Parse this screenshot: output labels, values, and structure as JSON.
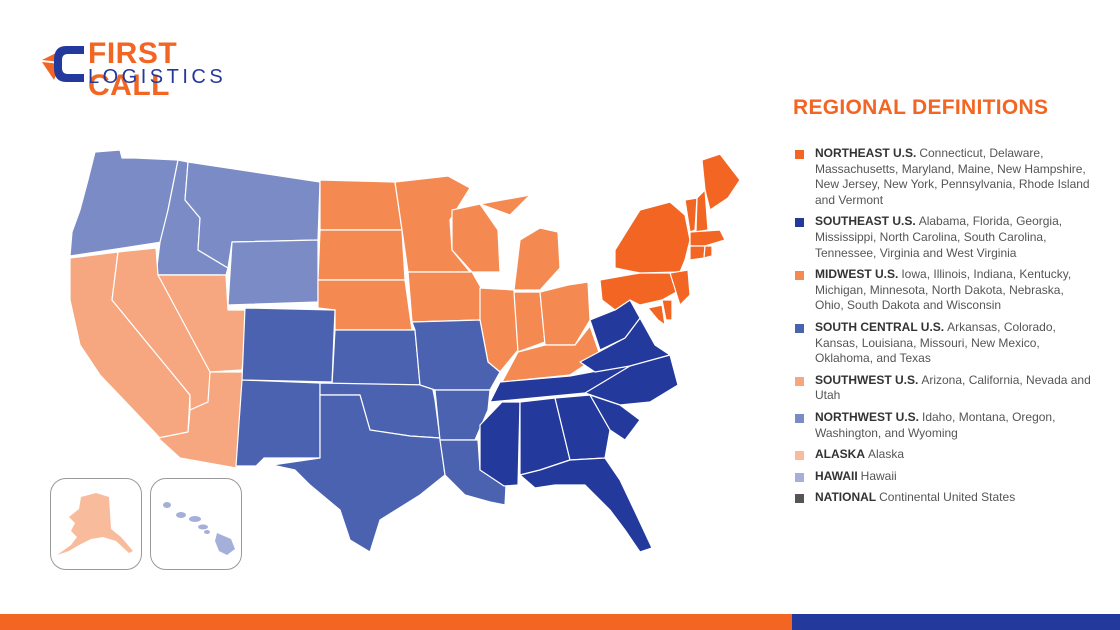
{
  "brand": {
    "line1": "FIRST CALL",
    "line2": "LOGISTICS"
  },
  "colors": {
    "northeast": "#f26522",
    "southeast": "#23399b",
    "midwest": "#f48a52",
    "south_central": "#4a62b0",
    "southwest": "#f6a77f",
    "northwest": "#7b8bc5",
    "alaska": "#f8bc9c",
    "hawaii": "#a5b0da",
    "national": "#555555"
  },
  "legend": {
    "title": "REGIONAL DEFINITIONS",
    "items": [
      {
        "name": "NORTHEAST U.S.",
        "desc": "Connecticut, Delaware, Massachusetts, Maryland, Maine, New Hampshire, New Jersey, New York, Pennsylvania, Rhode Island and Vermont",
        "color": "#f26522"
      },
      {
        "name": "SOUTHEAST U.S.",
        "desc": "Alabama, Florida, Georgia, Mississippi, North Carolina, South Carolina, Tennessee, Virginia and West Virginia",
        "color": "#23399b"
      },
      {
        "name": "MIDWEST U.S.",
        "desc": "Iowa, Illinois, Indiana, Kentucky, Michigan, Minnesota, North Dakota, Nebraska, Ohio, South Dakota and Wisconsin",
        "color": "#f48a52"
      },
      {
        "name": "SOUTH CENTRAL U.S.",
        "desc": "Arkansas, Colorado, Kansas, Louisiana, Missouri, New Mexico, Oklahoma, and Texas",
        "color": "#4a62b0"
      },
      {
        "name": "SOUTHWEST U.S.",
        "desc": "Arizona, California, Nevada and Utah",
        "color": "#f6a77f"
      },
      {
        "name": "NORTHWEST U.S.",
        "desc": "Idaho, Montana, Oregon, Washington, and Wyoming",
        "color": "#7b8bc5"
      },
      {
        "name": "ALASKA",
        "desc": "Alaska",
        "color": "#f8bc9c"
      },
      {
        "name": "HAWAII",
        "desc": "Hawaii",
        "color": "#a5b0da"
      },
      {
        "name": "NATIONAL",
        "desc": "Continental United States",
        "color": "#555555"
      }
    ]
  }
}
